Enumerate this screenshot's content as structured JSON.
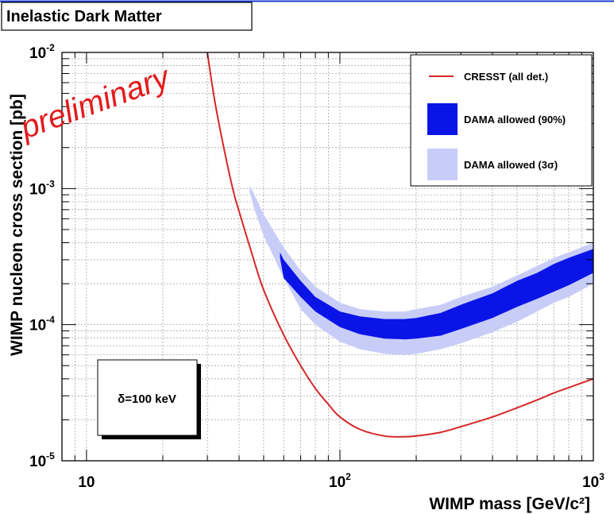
{
  "chart_data": {
    "type": "line",
    "title": "Inelastic Dark Matter",
    "watermark": "preliminary",
    "xlabel": "WIMP mass [GeV/c²]",
    "ylabel": "WIMP nucleon cross section [pb]",
    "xscale": "log",
    "yscale": "log",
    "xlim": [
      8,
      1000
    ],
    "ylim": [
      1e-05,
      0.01
    ],
    "grid": true,
    "x_ticks": [
      {
        "base": "10",
        "exp": ""
      },
      {
        "base": "10",
        "exp": "2"
      },
      {
        "base": "10",
        "exp": "3"
      }
    ],
    "y_ticks": [
      {
        "base": "10",
        "exp": "-5"
      },
      {
        "base": "10",
        "exp": "-4"
      },
      {
        "base": "10",
        "exp": "-3"
      },
      {
        "base": "10",
        "exp": "-2"
      }
    ],
    "legend_position": "top-right",
    "legend": [
      {
        "label": "CRESST (all det.)",
        "kind": "line",
        "color": "#d62728"
      },
      {
        "label": "DAMA allowed (90%)",
        "kind": "fill",
        "color": "#0a14e6"
      },
      {
        "label": "DAMA allowed (3σ)",
        "kind": "fill",
        "color": "#c8cdf8"
      }
    ],
    "annotation": "δ=100 keV",
    "series": [
      {
        "name": "CRESST (all det.)",
        "type": "line",
        "color": "#d62728",
        "x": [
          30,
          32,
          35,
          38,
          40,
          45,
          50,
          60,
          70,
          80,
          90,
          100,
          120,
          150,
          180,
          200,
          250,
          300,
          400,
          500,
          600,
          700,
          800,
          1000
        ],
        "y": [
          0.01,
          0.0045,
          0.0019,
          0.00095,
          0.00068,
          0.00033,
          0.00018,
          8.4e-05,
          5e-05,
          3.4e-05,
          2.6e-05,
          2.1e-05,
          1.7e-05,
          1.52e-05,
          1.5e-05,
          1.52e-05,
          1.62e-05,
          1.78e-05,
          2.1e-05,
          2.45e-05,
          2.8e-05,
          3.15e-05,
          3.45e-05,
          4e-05
        ]
      },
      {
        "name": "DAMA allowed (3σ)",
        "type": "band",
        "color": "#c8cdf8",
        "x": [
          44,
          46,
          50,
          55,
          60,
          70,
          80,
          100,
          120,
          150,
          180,
          200,
          250,
          300,
          400,
          500,
          600,
          700,
          800,
          1000
        ],
        "upper": [
          0.00105,
          0.0009,
          0.00065,
          0.00048,
          0.00037,
          0.00025,
          0.00019,
          0.000145,
          0.00013,
          0.000125,
          0.000125,
          0.00013,
          0.00014,
          0.00016,
          0.00019,
          0.00023,
          0.00027,
          0.00031,
          0.00034,
          0.0004
        ],
        "lower": [
          0.00095,
          0.0007,
          0.00045,
          0.00031,
          0.00022,
          0.00013,
          0.0001,
          7.5e-05,
          6.6e-05,
          6.1e-05,
          6e-05,
          6.1e-05,
          6.6e-05,
          7.3e-05,
          8.8e-05,
          0.000105,
          0.000125,
          0.000145,
          0.00016,
          0.0002
        ]
      },
      {
        "name": "DAMA allowed (90%)",
        "type": "band",
        "color": "#0a14e6",
        "x": [
          58,
          60,
          70,
          80,
          100,
          120,
          150,
          180,
          200,
          250,
          300,
          400,
          500,
          600,
          700,
          800,
          1000
        ],
        "upper": [
          0.00034,
          0.0003,
          0.00021,
          0.00016,
          0.000125,
          0.000115,
          0.00011,
          0.00011,
          0.000112,
          0.000122,
          0.00014,
          0.00017,
          0.00021,
          0.00024,
          0.00028,
          0.00031,
          0.00036
        ],
        "lower": [
          0.00031,
          0.00022,
          0.00016,
          0.000125,
          9.6e-05,
          8.5e-05,
          7.9e-05,
          7.8e-05,
          7.9e-05,
          8.3e-05,
          9.3e-05,
          0.000112,
          0.000135,
          0.000155,
          0.000175,
          0.000195,
          0.00024
        ]
      }
    ]
  }
}
